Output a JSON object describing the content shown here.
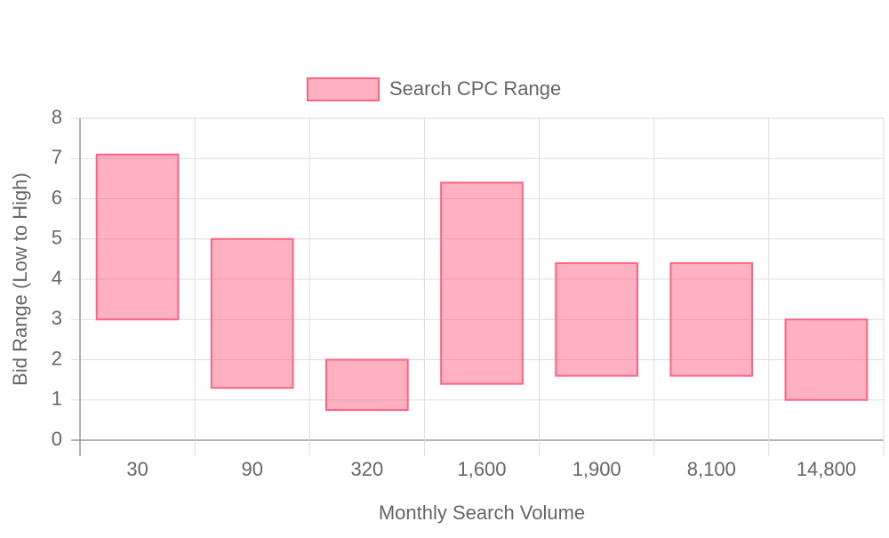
{
  "chart_data": {
    "type": "floating-bar",
    "x_label": "Monthly Search Volume",
    "y_label": "Bid Range (Low to High)",
    "categories": [
      "30",
      "90",
      "320",
      "1,600",
      "1,900",
      "8,100",
      "14,800"
    ],
    "series": [
      {
        "name": "Search CPC Range",
        "color": "#ff6384",
        "fill": "rgba(255,99,132,0.5)",
        "values": [
          [
            3.0,
            7.1
          ],
          [
            1.3,
            5.0
          ],
          [
            0.75,
            2.0
          ],
          [
            1.4,
            6.4
          ],
          [
            1.6,
            4.4
          ],
          [
            1.6,
            4.4
          ],
          [
            1.0,
            3.0
          ]
        ]
      }
    ],
    "ylim": [
      0,
      8
    ],
    "yticks": [
      0,
      1,
      2,
      3,
      4,
      5,
      6,
      7,
      8
    ],
    "grid": true,
    "legend": "top"
  }
}
